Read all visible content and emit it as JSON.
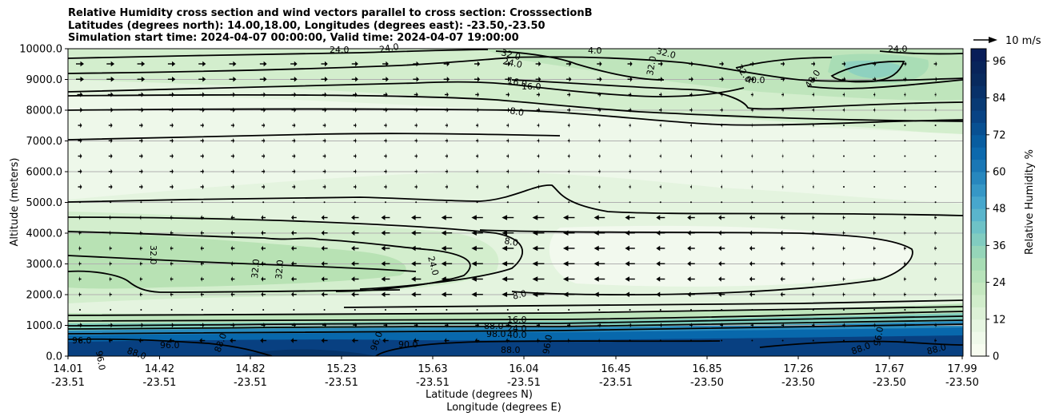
{
  "chart_data": {
    "type": "contour",
    "title_lines": [
      "Relative Humidity cross section and wind vectors parallel to cross section: CrosssectionB",
      "Latitudes (degrees north): 14.00,18.00, Longitudes (degrees east): -23.50,-23.50",
      "Simulation start time: 2024-04-07 00:00:00, Valid time: 2024-04-07 19:00:00"
    ],
    "ylabel": "Altitude (meters)",
    "xlabel_lat": "Latitude (degrees N)",
    "xlabel_lon": "Longitude (degrees E)",
    "ylim": [
      0,
      10000
    ],
    "y_ticks": [
      "0.0",
      "1000.0",
      "2000.0",
      "3000.0",
      "4000.0",
      "5000.0",
      "6000.0",
      "7000.0",
      "8000.0",
      "9000.0",
      "10000.0"
    ],
    "x_ticks": [
      {
        "lat": "14.01",
        "lon": "-23.51"
      },
      {
        "lat": "14.42",
        "lon": "-23.51"
      },
      {
        "lat": "14.82",
        "lon": "-23.51"
      },
      {
        "lat": "15.23",
        "lon": "-23.51"
      },
      {
        "lat": "15.63",
        "lon": "-23.51"
      },
      {
        "lat": "16.04",
        "lon": "-23.51"
      },
      {
        "lat": "16.45",
        "lon": "-23.51"
      },
      {
        "lat": "16.85",
        "lon": "-23.50"
      },
      {
        "lat": "17.26",
        "lon": "-23.50"
      },
      {
        "lat": "17.67",
        "lon": "-23.50"
      },
      {
        "lat": "17.99",
        "lon": "-23.50"
      }
    ],
    "colorbar": {
      "label": "Relative Humidity %",
      "ticks": [
        "0",
        "12",
        "24",
        "36",
        "48",
        "60",
        "72",
        "84",
        "96"
      ],
      "min": 0,
      "max": 100,
      "step": 4
    },
    "quiver_key": "10 m/s",
    "contour_labels": [
      {
        "text": "24.0"
      },
      {
        "text": "32.0"
      },
      {
        "text": "24.0"
      },
      {
        "text": "4.0"
      },
      {
        "text": "24.0"
      },
      {
        "text": "32.0"
      },
      {
        "text": "24.0"
      },
      {
        "text": "32.0"
      },
      {
        "text": "16.0"
      },
      {
        "text": "16.0"
      },
      {
        "text": "32.0"
      },
      {
        "text": "40.0"
      },
      {
        "text": "40.0"
      },
      {
        "text": "8.0"
      },
      {
        "text": "32.0"
      },
      {
        "text": "32.0"
      },
      {
        "text": "32.0"
      },
      {
        "text": "24.0"
      },
      {
        "text": "8.0"
      },
      {
        "text": "8.0"
      },
      {
        "text": "16.0"
      },
      {
        "text": "24.0"
      },
      {
        "text": "40.0"
      },
      {
        "text": "96.0"
      },
      {
        "text": "88.0"
      },
      {
        "text": "96.0"
      },
      {
        "text": "88.0"
      },
      {
        "text": "96.0"
      },
      {
        "text": "88.0"
      },
      {
        "text": "96.0"
      },
      {
        "text": "88.0"
      },
      {
        "text": "96.0"
      },
      {
        "text": "90.0"
      },
      {
        "text": "88.0"
      },
      {
        "text": "96.0"
      },
      {
        "text": "88.0"
      },
      {
        "text": "98.0"
      }
    ]
  }
}
